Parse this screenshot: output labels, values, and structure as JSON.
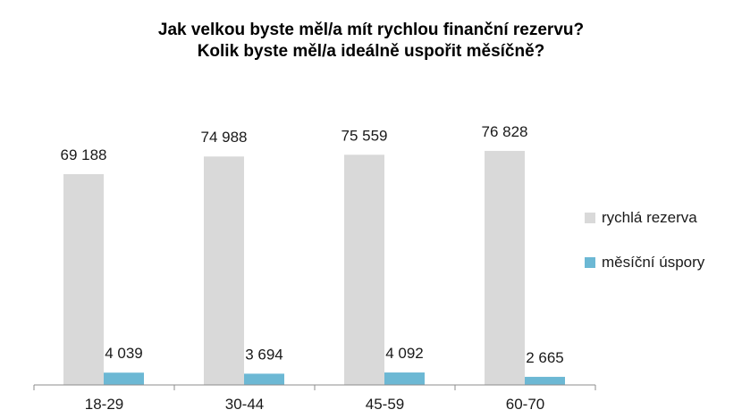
{
  "chart_data": {
    "type": "bar",
    "title_lines": [
      "Jak velkou byste měl/a mít rychlou finanční rezervu?",
      "Kolik byste měl/a ideálně uspořit měsíčně?"
    ],
    "categories": [
      "18-29",
      "30-44",
      "45-59",
      "60-70"
    ],
    "series": [
      {
        "name": "rychlá rezerva",
        "values": [
          69188,
          74988,
          75559,
          76828
        ],
        "labels": [
          "69 188",
          "74 988",
          "75 559",
          "76 828"
        ],
        "color": "#d9d9d9"
      },
      {
        "name": "měsíční úspory",
        "values": [
          4039,
          3694,
          4092,
          2665
        ],
        "labels": [
          "4 039",
          "3 694",
          "4 092",
          "2 665"
        ],
        "color": "#6cb8d4"
      }
    ],
    "legend_position": "right",
    "grid": false
  }
}
